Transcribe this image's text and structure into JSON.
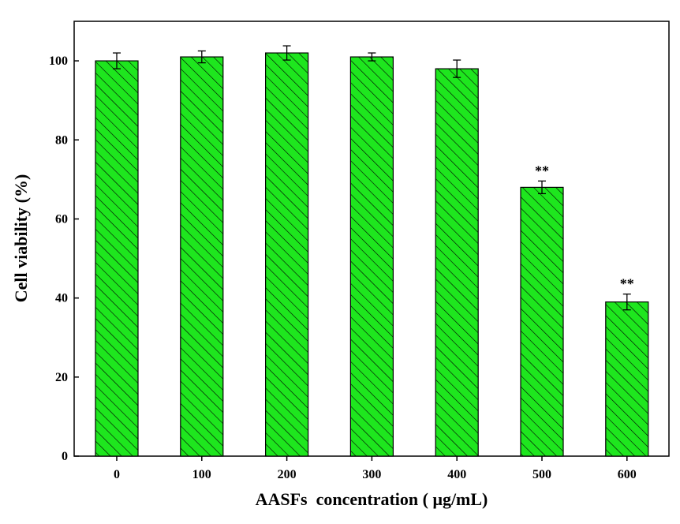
{
  "chart_data": {
    "type": "bar",
    "categories": [
      "0",
      "100",
      "200",
      "300",
      "400",
      "500",
      "600"
    ],
    "values": [
      100,
      101,
      102,
      101,
      98,
      68,
      39
    ],
    "errors": [
      2.0,
      1.5,
      1.8,
      1.0,
      2.2,
      1.6,
      2.0
    ],
    "annotations": [
      "",
      "",
      "",
      "",
      "",
      "**",
      "**"
    ],
    "xlabel": "AASFs  concentration ( μg/mL)",
    "ylabel": "Cell viability (%)",
    "ylim": [
      0,
      110
    ],
    "yticks": [
      0,
      20,
      40,
      60,
      80,
      100
    ],
    "bar_color": "#1ee61e",
    "hatch": "diagonal",
    "grid": false
  }
}
